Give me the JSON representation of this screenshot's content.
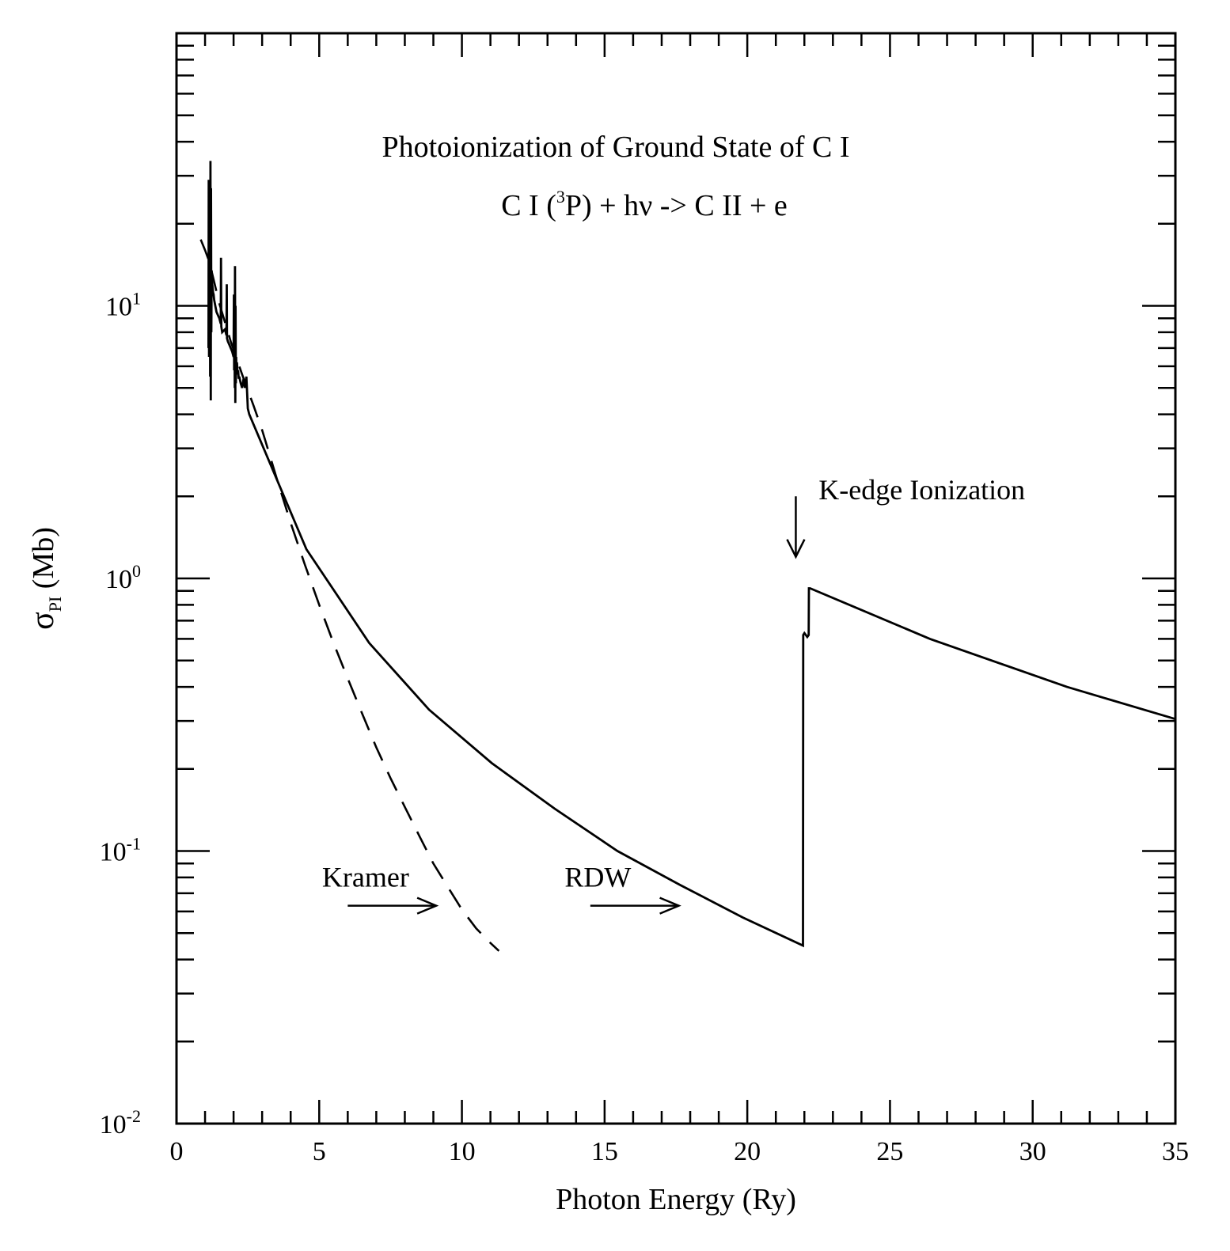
{
  "chart_data": {
    "type": "line",
    "title": "Photoionization of Ground State of C I",
    "subtitle": {
      "prefix": "C I (",
      "superscript": "3",
      "suffix": "P) + hν -> C II + e"
    },
    "xlabel": "Photon Energy (Ry)",
    "ylabel": {
      "symbol": "σ",
      "subscript": "PI",
      "unit": " (Mb)"
    },
    "x_scale": "linear",
    "y_scale": "log",
    "xlim": [
      0,
      35
    ],
    "ylim": [
      0.01,
      100
    ],
    "x_ticks": [
      0,
      5,
      10,
      15,
      20,
      25,
      30,
      35
    ],
    "x_tick_labels": [
      "0",
      "5",
      "10",
      "15",
      "20",
      "25",
      "30",
      "35"
    ],
    "y_ticks": [
      {
        "value": 0.01,
        "base": "10",
        "exp": "-2"
      },
      {
        "value": 0.1,
        "base": "10",
        "exp": "-1"
      },
      {
        "value": 1,
        "base": "10",
        "exp": "0"
      },
      {
        "value": 10,
        "base": "10",
        "exp": "1"
      }
    ],
    "grid": false,
    "series": [
      {
        "name": "RDW",
        "style": "solid",
        "color": "#000000",
        "x": [
          1.12,
          1.13,
          1.14,
          1.15,
          1.16,
          1.17,
          1.18,
          1.19,
          1.2,
          1.21,
          1.22,
          1.23,
          1.24,
          1.25,
          1.26,
          1.27,
          1.28,
          1.3,
          1.32,
          1.4,
          1.5,
          1.55,
          1.56,
          1.57,
          1.6,
          1.7,
          1.75,
          1.76,
          1.77,
          1.8,
          1.85,
          1.9,
          1.95,
          2.0,
          2.01,
          2.02,
          2.03,
          2.04,
          2.05,
          2.06,
          2.07,
          2.08,
          2.09,
          2.1,
          2.12,
          2.14,
          2.16,
          2.18,
          2.2,
          2.25,
          2.3,
          2.35,
          2.4,
          2.45,
          2.5,
          2.55,
          4.55,
          6.75,
          8.85,
          11.05,
          13.25,
          15.45,
          17.65,
          19.85,
          21.95,
          21.96,
          22.0,
          22.1,
          22.15,
          22.16,
          22.2,
          26.4,
          31.2,
          35.0
        ],
        "y": [
          7.0,
          29.0,
          6.5,
          26.0,
          7.5,
          24.0,
          5.5,
          34.0,
          4.5,
          27.0,
          8.0,
          13.5,
          12.5,
          12.0,
          11.8,
          11.5,
          11.2,
          11.0,
          10.5,
          9.5,
          9.0,
          8.6,
          15.0,
          8.4,
          8.0,
          8.2,
          7.8,
          12.0,
          7.6,
          7.4,
          7.2,
          7.0,
          6.8,
          6.5,
          11.0,
          5.8,
          9.0,
          5.0,
          14.0,
          4.4,
          10.0,
          5.2,
          6.5,
          5.8,
          6.2,
          5.6,
          5.8,
          5.4,
          5.5,
          5.2,
          5.0,
          5.4,
          5.0,
          5.5,
          4.2,
          4.0,
          1.28,
          0.58,
          0.33,
          0.21,
          0.143,
          0.1,
          0.075,
          0.057,
          0.045,
          0.62,
          0.63,
          0.61,
          0.62,
          0.92,
          0.92,
          0.6,
          0.4,
          0.305
        ]
      },
      {
        "name": "Kramer",
        "style": "dashed",
        "color": "#000000",
        "x": [
          0.85,
          1.0,
          1.15,
          1.5,
          1.9,
          2.3,
          2.7,
          3.0,
          3.5,
          4.0,
          4.5,
          5.0,
          5.5,
          6.0,
          6.5,
          7.0,
          7.5,
          8.0,
          8.5,
          9.0,
          9.5,
          10.0,
          10.5,
          11.0,
          11.3
        ],
        "y": [
          17.5,
          16.0,
          14.5,
          10.2,
          7.4,
          5.6,
          4.3,
          3.5,
          2.35,
          1.6,
          1.12,
          0.8,
          0.58,
          0.43,
          0.32,
          0.24,
          0.185,
          0.145,
          0.114,
          0.09,
          0.074,
          0.061,
          0.052,
          0.046,
          0.043
        ]
      }
    ],
    "annotations": [
      {
        "text": "K-edge Ionization",
        "arrow": "down",
        "arrow_x": 21.7,
        "arrow_y_from": 2.0,
        "arrow_y_to": 1.2,
        "text_x": 22.5,
        "text_y": 1.95
      },
      {
        "text": "Kramer",
        "arrow": "right",
        "arrow_x_from": 6.0,
        "arrow_x_to": 9.1,
        "arrow_y": 0.063,
        "text_x": 5.1,
        "text_y": 0.074
      },
      {
        "text": "RDW",
        "arrow": "right",
        "arrow_x_from": 14.5,
        "arrow_x_to": 17.6,
        "arrow_y": 0.063,
        "text_x": 13.6,
        "text_y": 0.074
      }
    ]
  }
}
